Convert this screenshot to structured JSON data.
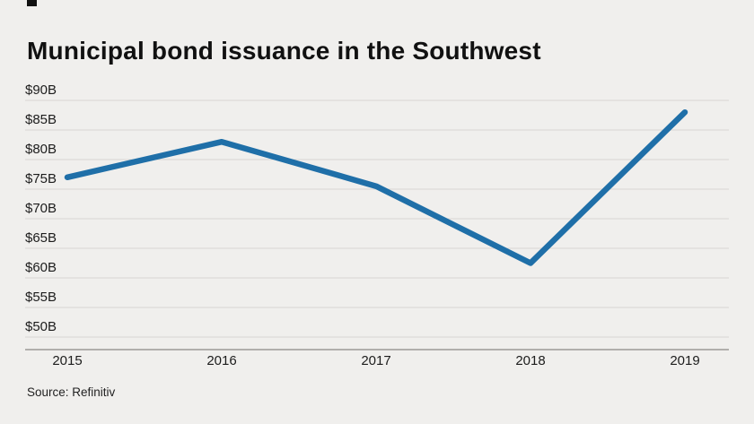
{
  "page": {
    "title": "Municipal bond issuance in the Southwest",
    "source": "Source: Refinitiv"
  },
  "chart_data": {
    "type": "line",
    "title": "Municipal bond issuance in the Southwest",
    "x_labels": [
      "2015",
      "2016",
      "2017",
      "2018",
      "2019"
    ],
    "series": [
      {
        "name": "Municipal bond issuance",
        "values": [
          77,
          83,
          75.5,
          62.5,
          88
        ]
      }
    ],
    "ylim": [
      50,
      90
    ],
    "ytick_step": 5,
    "ytick_labels": [
      "$90B",
      "$85B",
      "$80B",
      "$75B",
      "$70B",
      "$65B",
      "$60B",
      "$55B",
      "$50B"
    ],
    "grid": true,
    "legend": "none",
    "line_color": "#1f6fa8",
    "background": "#f0efed",
    "source": "Source: Refinitiv"
  }
}
